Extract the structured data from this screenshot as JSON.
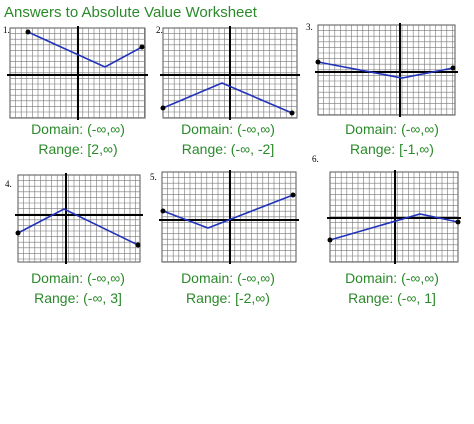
{
  "title": "Answers to Absolute Value Worksheet",
  "problems": [
    {
      "number": "1.",
      "domain": "Domain:  (-∞,∞)",
      "range": "Range:  [2,∞)"
    },
    {
      "number": "2.",
      "domain": "Domain:  (-∞,∞)",
      "range": "Range:  (-∞, -2]"
    },
    {
      "number": "3.",
      "domain": "Domain:  (-∞,∞)",
      "range": "Range:  [-1,∞)"
    },
    {
      "number": "4.",
      "domain": "Domain:  (-∞,∞)",
      "range": "Range:  (-∞, 3]"
    },
    {
      "number": "5.",
      "domain": "Domain:  (-∞,∞)",
      "range": "Range:  [-2,∞)"
    },
    {
      "number": "6.",
      "domain": "Domain:  (-∞,∞)",
      "range": "Range:  (-∞, 1]"
    }
  ]
}
